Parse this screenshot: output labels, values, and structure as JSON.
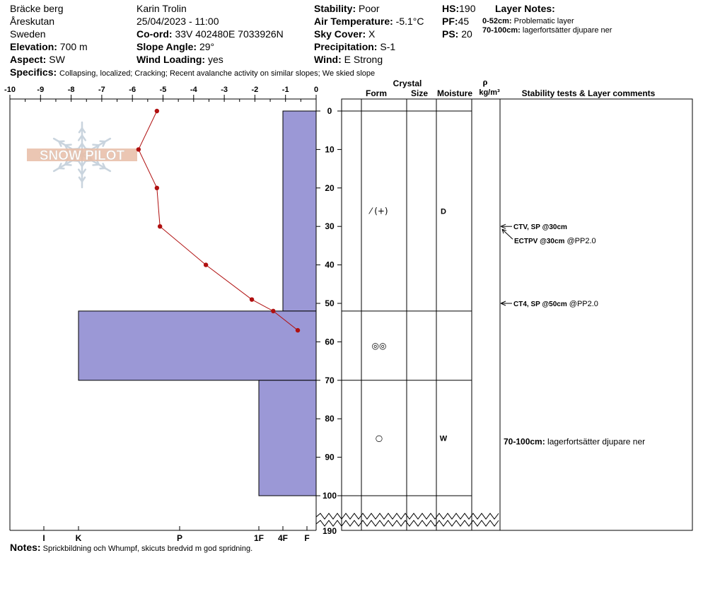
{
  "header": {
    "location": "Bräcke berg",
    "area": "Åreskutan",
    "country": "Sweden",
    "elevation_label": "Elevation:",
    "elevation_value": "700 m",
    "aspect_label": "Aspect:",
    "aspect_value": "SW",
    "observer": "Karin  Trolin",
    "datetime": "25/04/2023 - 11:00",
    "coord_label": "Co-ord:",
    "coord_value": "33V 402480E 7033926N",
    "slope_label": "Slope Angle:",
    "slope_value": "29°",
    "wind_loading_label": "Wind Loading:",
    "wind_loading_value": "yes",
    "stability_label": "Stability:",
    "stability_value": "Poor",
    "air_temp_label": "Air Temperature:",
    "air_temp_value": "-5.1°C",
    "sky_label": "Sky Cover:",
    "sky_value": "X",
    "precip_label": "Precipitation:",
    "precip_value": "S-1",
    "wind_label": "Wind:",
    "wind_value": "E Strong",
    "hs_label": "HS:",
    "hs_value": "190",
    "pf_label": "PF:",
    "pf_value": "45",
    "ps_label": "PS:",
    "ps_value": "20",
    "layer_notes_label": "Layer Notes:",
    "layer_note_1_range": "0-52cm:",
    "layer_note_1_text": "Problematic layer",
    "layer_note_2_range": "70-100cm:",
    "layer_note_2_text": "lagerfortsätter djupare ner",
    "specifics_label": "Specifics:",
    "specifics_text": "Collapsing, localized;  Cracking;  Recent avalanche activity on similar slopes;  We skied slope"
  },
  "watermark": {
    "text": "SNOW PILOT"
  },
  "columns": {
    "crystal": "Crystal",
    "form": "Form",
    "size": "Size",
    "moisture": "Moisture",
    "rho": "ρ",
    "rho_unit": "kg/m³",
    "stability": "Stability tests & Layer comments"
  },
  "chart_data": {
    "type": "line",
    "temperature_axis": {
      "ticks": [
        -10,
        -9,
        -8,
        -7,
        -6,
        -5,
        -4,
        -3,
        -2,
        -1,
        0
      ],
      "tick_labels": [
        "-10",
        "-9",
        "-8",
        "-7",
        "-6",
        "-5",
        "-4",
        "-3",
        "-2",
        "-1",
        "0"
      ],
      "range": [
        -10,
        0
      ]
    },
    "depth_axis": {
      "ticks": [
        0,
        10,
        20,
        30,
        40,
        50,
        60,
        70,
        80,
        90,
        100
      ],
      "tick_labels": [
        "0",
        "10",
        "20",
        "30",
        "40",
        "50",
        "60",
        "70",
        "80",
        "90",
        "100"
      ],
      "bottom_label": "190",
      "range": [
        0,
        100
      ]
    },
    "hardness_axis": {
      "labels": [
        "I",
        "K",
        "P",
        "1F",
        "4F",
        "F"
      ]
    },
    "temperature_profile": {
      "depth": [
        0,
        10,
        20,
        30,
        40,
        49,
        52,
        57
      ],
      "temp": [
        -5.2,
        -5.8,
        -5.2,
        -5.1,
        -3.6,
        -2.1,
        -1.4,
        -0.6
      ]
    },
    "hardness_layers": [
      {
        "top": 0,
        "bottom": 52,
        "hardness": "4F"
      },
      {
        "top": 52,
        "bottom": 70,
        "hardness": "K"
      },
      {
        "top": 70,
        "bottom": 100,
        "hardness": "1F"
      }
    ],
    "layer_boundaries": [
      0,
      52,
      70,
      100
    ]
  },
  "crystals": [
    {
      "depth": 26,
      "form": "⁄ (+)",
      "moisture": "D"
    },
    {
      "depth": 61,
      "form": "◎◎",
      "moisture": ""
    },
    {
      "depth": 85,
      "form": "○",
      "moisture": "W"
    }
  ],
  "stability_tests": [
    {
      "depth": 30,
      "label": "CTV, SP @30cm",
      "extra": "",
      "arrow": true,
      "offset": 0
    },
    {
      "depth": 30,
      "label": "ECTPV @30cm",
      "extra": "@PP2.0",
      "arrow": true,
      "offset": 1
    },
    {
      "depth": 50,
      "label": "CT4, SP @50cm",
      "extra": "@PP2.0",
      "arrow": true,
      "offset": 0
    }
  ],
  "layer_comment": {
    "depth": 85,
    "range": "70-100cm:",
    "text": "lagerfortsätter djupare ner"
  },
  "notes": {
    "label": "Notes:",
    "text": "Sprickbildning och Whumpf, skicuts bredvid m god spridning."
  },
  "colors": {
    "hardness_fill": "#9b98d6",
    "temp_line": "#b01010",
    "temp_point": "#b01010",
    "watermark": "#c9d4de",
    "watermark_bar": "#e8bca6"
  }
}
